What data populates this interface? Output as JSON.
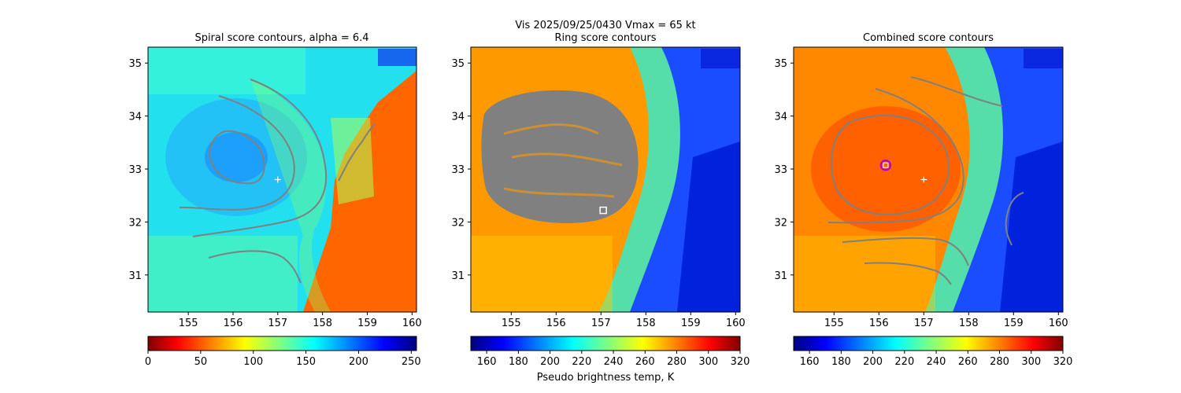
{
  "suptitle": "Vis  2025/09/25/0430    Vmax = 65 kt",
  "colorbar_label": "Pseudo brightness temp, K",
  "chart_data": [
    {
      "type": "heatmap",
      "title": "Spiral score contours, alpha =  6.4",
      "xlim": [
        154.1,
        160.1
      ],
      "ylim": [
        30.3,
        35.3
      ],
      "x_ticks": [
        155,
        156,
        157,
        158,
        159,
        160
      ],
      "y_ticks": [
        31,
        32,
        33,
        34,
        35
      ],
      "colorbar": {
        "range": [
          0,
          255
        ],
        "ticks": [
          0,
          50,
          100,
          150,
          200,
          250
        ],
        "colormap": "jet"
      },
      "markers": [
        {
          "kind": "plus",
          "x": 157.0,
          "y": 32.8,
          "color": "#ffffff"
        }
      ]
    },
    {
      "type": "heatmap",
      "title": "Ring score contours",
      "xlim": [
        154.1,
        160.1
      ],
      "ylim": [
        30.3,
        35.3
      ],
      "x_ticks": [
        155,
        156,
        157,
        158,
        159,
        160
      ],
      "y_ticks": [
        31,
        32,
        33,
        34,
        35
      ],
      "colorbar": {
        "range": [
          150,
          320
        ],
        "ticks": [
          160,
          180,
          200,
          220,
          240,
          260,
          280,
          300,
          320
        ],
        "colormap": "jet_r"
      },
      "markers": [
        {
          "kind": "square",
          "x": 157.05,
          "y": 32.22,
          "color": "#ffffff"
        }
      ]
    },
    {
      "type": "heatmap",
      "title": "Combined score contours",
      "xlim": [
        154.1,
        160.1
      ],
      "ylim": [
        30.3,
        35.3
      ],
      "x_ticks": [
        155,
        156,
        157,
        158,
        159,
        160
      ],
      "y_ticks": [
        31,
        32,
        33,
        34,
        35
      ],
      "colorbar": {
        "range": [
          150,
          320
        ],
        "ticks": [
          160,
          180,
          200,
          220,
          240,
          260,
          280,
          300,
          320
        ],
        "colormap": "jet_r"
      },
      "markers": [
        {
          "kind": "plus",
          "x": 157.0,
          "y": 32.8,
          "color": "#ffffff"
        },
        {
          "kind": "circle",
          "x": 156.15,
          "y": 33.07,
          "color": "#c000c0"
        }
      ]
    }
  ]
}
